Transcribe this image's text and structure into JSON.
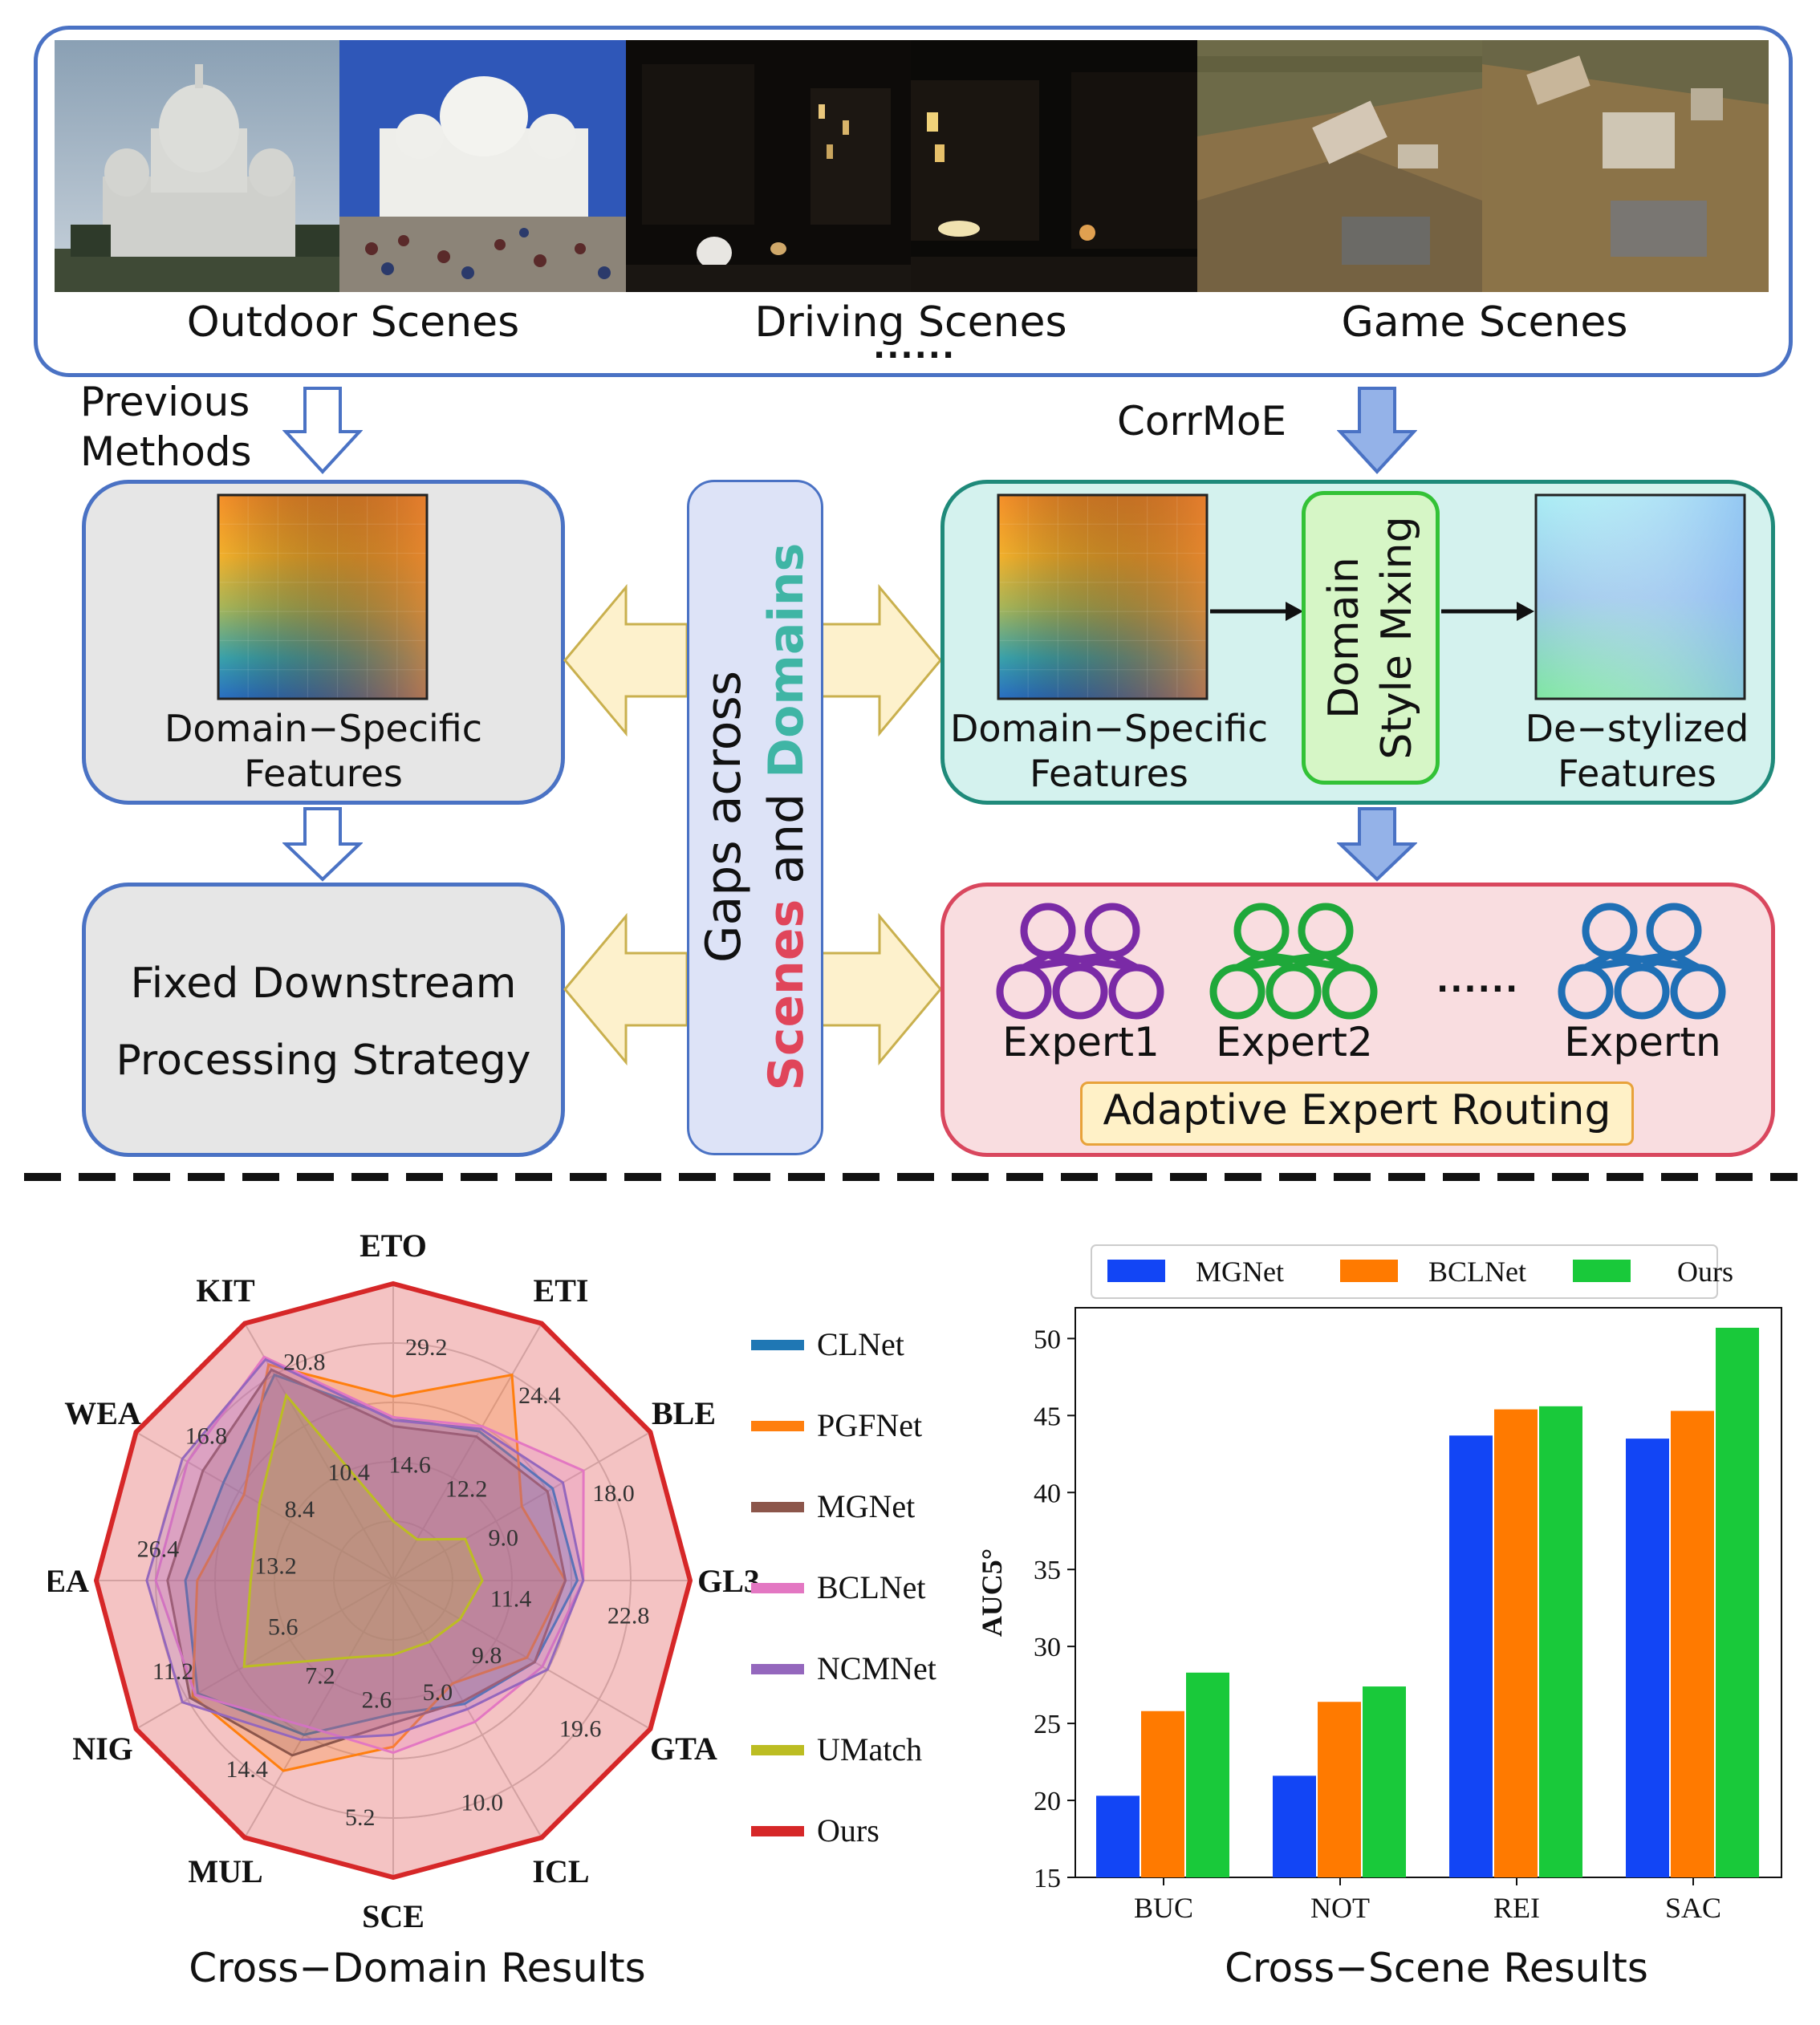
{
  "top_panel": {
    "scenes": [
      {
        "label": "Outdoor Scenes"
      },
      {
        "label": "Driving Scenes"
      },
      {
        "label": "Game Scenes"
      }
    ],
    "ellipsis": "......"
  },
  "left_column": {
    "header": "Previous\nMethods",
    "features_label": "Domain−Specific\nFeatures",
    "strategy_label": "Fixed Downstream\nProcessing Strategy"
  },
  "center_pill": {
    "line1": "Gaps across",
    "scenes_word": "Scenes",
    "and_word": " and ",
    "domains_word": "Domains"
  },
  "right_column": {
    "header": "CorrMoE",
    "features_label": "Domain−Specific\nFeatures",
    "style_mixing": "Domain\nStyle Mxing",
    "destyled_label": "De−stylized\nFeatures",
    "experts": [
      "Expert1",
      "Expert2",
      "Expertn"
    ],
    "experts_ellipsis": "......",
    "routing_label": "Adaptive Expert Routing"
  },
  "colors": {
    "blue_border": "#4a72c4",
    "teal_border": "#1f8a7a",
    "teal_fill": "#d4f2ee",
    "pink_border": "#d9475e",
    "pink_fill": "#f9dde0",
    "grey_fill": "#e6e6e6",
    "pill_fill": "#dde3f7",
    "yellow_arrow": "#fdf1cc",
    "yellow_border": "#c9b04e",
    "green_box": "#33c236",
    "scenes_red": "#e0455a",
    "domains_teal": "#3fb5a5",
    "expert1": "#7a2aa6",
    "expert2": "#1fa83a",
    "expertn": "#1f6fb5",
    "routing_fill": "#fff1c7",
    "routing_border": "#e8a23a"
  },
  "chart_data": [
    {
      "type": "radar",
      "caption": "Cross−Domain Results",
      "axes": [
        "ETO",
        "ETI",
        "BLE",
        "GL3",
        "GTA",
        "ICL",
        "SCE",
        "MUL",
        "NIG",
        "SEA",
        "WEA",
        "KIT"
      ],
      "ring_labels": [
        [
          "29.2",
          "14.6"
        ],
        [
          "24.4",
          "12.2"
        ],
        [
          "18.0",
          "9.0"
        ],
        [
          "22.8",
          "11.4"
        ],
        [
          "19.6",
          "9.8"
        ],
        [
          "10.0",
          "5.0"
        ],
        [
          "5.2",
          "2.6"
        ],
        [
          "14.4",
          "7.2"
        ],
        [
          "11.2",
          "5.6"
        ],
        [
          "26.4",
          "13.2"
        ],
        [
          "16.8",
          "8.4"
        ],
        [
          "20.8",
          "10.4"
        ]
      ],
      "series": [
        {
          "name": "CLNet",
          "color": "#1f77b4",
          "values": [
            0.55,
            0.58,
            0.62,
            0.62,
            0.55,
            0.48,
            0.45,
            0.6,
            0.76,
            0.7,
            0.66,
            0.8
          ]
        },
        {
          "name": "PGFNet",
          "color": "#ff7f0e",
          "values": [
            0.62,
            0.8,
            0.5,
            0.58,
            0.52,
            0.4,
            0.56,
            0.74,
            0.78,
            0.66,
            0.58,
            0.84
          ]
        },
        {
          "name": "MGNet",
          "color": "#8c564b",
          "values": [
            0.52,
            0.56,
            0.6,
            0.58,
            0.55,
            0.47,
            0.48,
            0.68,
            0.79,
            0.76,
            0.74,
            0.82
          ]
        },
        {
          "name": "BCLNet",
          "color": "#e377c2",
          "values": [
            0.55,
            0.6,
            0.74,
            0.64,
            0.58,
            0.55,
            0.58,
            0.57,
            0.77,
            0.8,
            0.8,
            0.87
          ]
        },
        {
          "name": "NCMNet",
          "color": "#9467bd",
          "values": [
            0.54,
            0.59,
            0.66,
            0.64,
            0.6,
            0.5,
            0.52,
            0.62,
            0.82,
            0.83,
            0.82,
            0.86
          ]
        },
        {
          "name": "UMatch",
          "color": "#bcbd22",
          "values": [
            0.2,
            0.16,
            0.28,
            0.3,
            0.26,
            0.24,
            0.25,
            0.3,
            0.58,
            0.48,
            0.52,
            0.72
          ]
        },
        {
          "name": "Ours",
          "color": "#d62728",
          "values": [
            1,
            1,
            1,
            1,
            1,
            1,
            1,
            1,
            1,
            1,
            1,
            1
          ]
        }
      ]
    },
    {
      "type": "bar",
      "caption": "Cross−Scene Results",
      "categories": [
        "BUC",
        "NOT",
        "REI",
        "SAC"
      ],
      "ylabel": "AUC5°",
      "ylim": [
        15,
        52
      ],
      "yticks": [
        15,
        20,
        25,
        30,
        35,
        40,
        45,
        50
      ],
      "series": [
        {
          "name": "MGNet",
          "color": "#1245f5",
          "values": [
            20.3,
            21.6,
            43.7,
            43.5
          ]
        },
        {
          "name": "BCLNet",
          "color": "#ff7a00",
          "values": [
            25.8,
            26.4,
            45.4,
            45.3
          ]
        },
        {
          "name": "Ours",
          "color": "#19c93a",
          "values": [
            28.3,
            27.4,
            45.6,
            50.7
          ]
        }
      ]
    }
  ]
}
